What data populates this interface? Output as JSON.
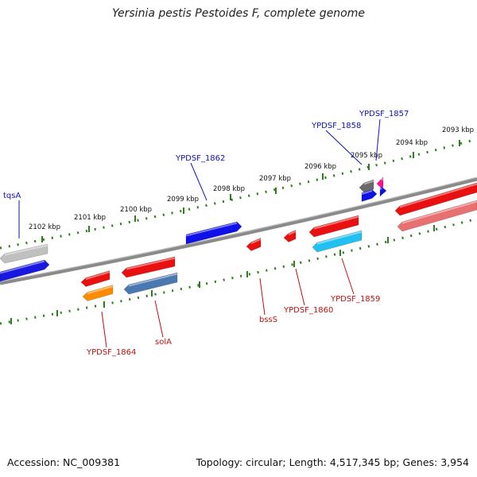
{
  "title": "Yersinia pestis Pestoides F, complete genome",
  "footer": {
    "accession": "Accession: NC_009381",
    "summary": "Topology: circular; Length: 4,517,345 bp; Genes: 3,954"
  },
  "colors": {
    "backbone": "#808080",
    "tick": "#2e7d1f",
    "forward_label": "#1010c0",
    "reverse_label": "#c01010"
  },
  "ticks": [
    "2102 kbp",
    "2101 kbp",
    "2100 kbp",
    "2099 kbp",
    "2098 kbp",
    "2097 kbp",
    "2096 kbp",
    "2095 kbp",
    "2094 kbp",
    "2093 kbp"
  ],
  "forward_labels": [
    "tqsA",
    "YPDSF_1862",
    "YPDSF_1858",
    "YPDSF_1857"
  ],
  "reverse_labels": [
    "YPDSF_1864",
    "solA",
    "bssS",
    "YPDSF_1860",
    "YPDSF_1859"
  ]
}
